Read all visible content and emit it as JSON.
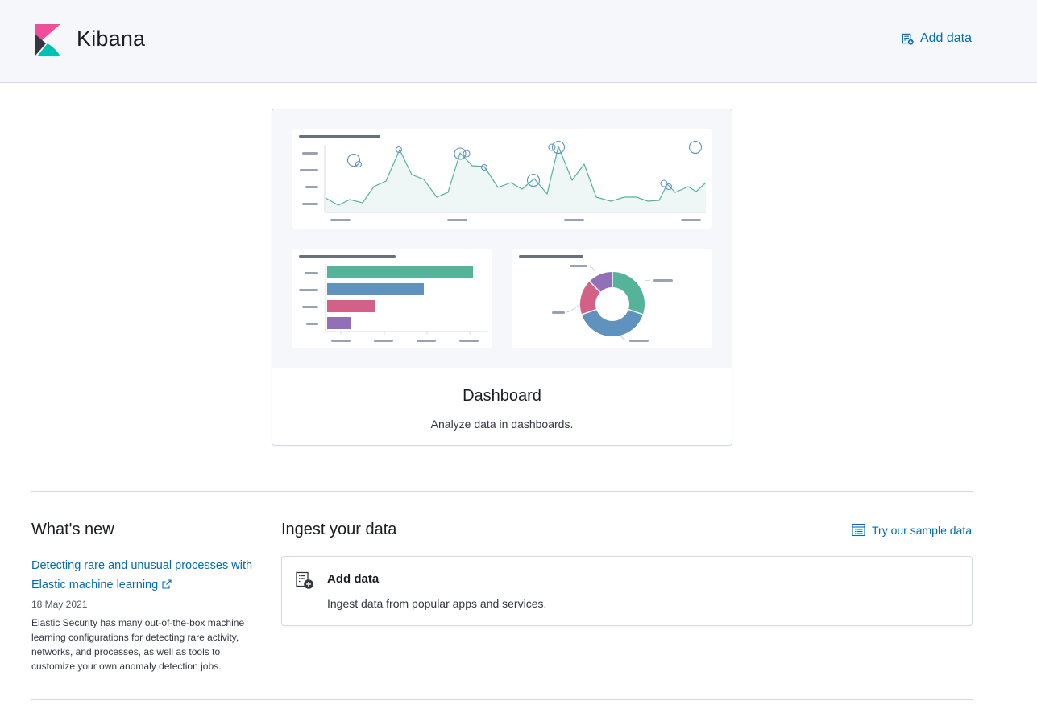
{
  "header": {
    "app_title": "Kibana",
    "add_data_label": "Add data"
  },
  "dashboard_card": {
    "title": "Dashboard",
    "description": "Analyze data in dashboards."
  },
  "whats_new": {
    "title": "What's new",
    "article": {
      "title": "Detecting rare and unusual processes with Elastic machine learning",
      "date": "18 May 2021",
      "body": "Elastic Security has many out-of-the-box machine learning configurations for detecting rare activity, networks, and processes, as well as tools to customize your own anomaly detection jobs."
    }
  },
  "ingest": {
    "title": "Ingest your data",
    "sample_data_label": "Try our sample data",
    "add_data_card": {
      "title": "Add data",
      "description": "Ingest data from popular apps and services."
    }
  },
  "colors": {
    "link": "#006bb8",
    "green": "#54b399",
    "blue": "#6092c0",
    "pink": "#d36086",
    "purple": "#9170b8"
  },
  "icons": {
    "header_add_data": "add-data-icon",
    "sample_data": "sample-data-icon",
    "external_link": "external-link-icon",
    "add_data_card": "add-data-card-icon"
  }
}
